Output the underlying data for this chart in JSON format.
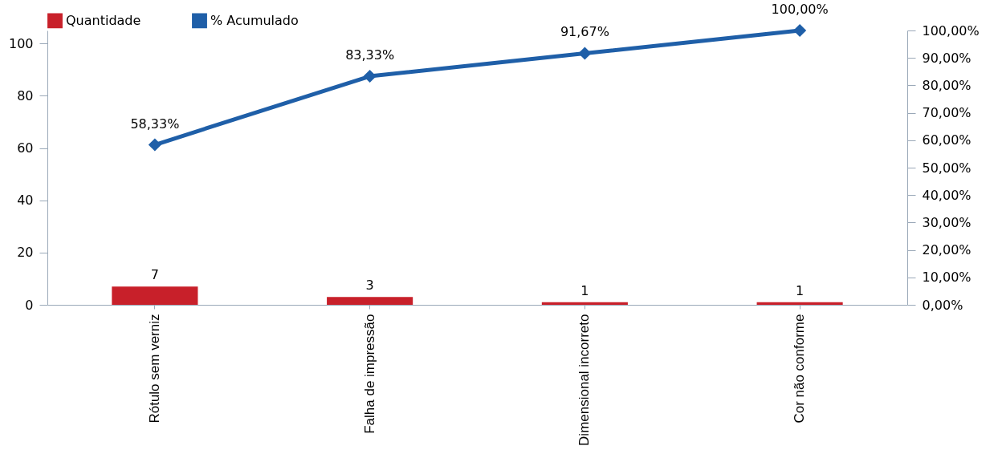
{
  "chart_data": {
    "type": "bar",
    "categories": [
      "Rótulo sem verniz",
      "Falha de impressão",
      "Dimensional incorreto",
      "Cor não conforme"
    ],
    "series": [
      {
        "name": "Quantidade",
        "type": "bar",
        "color": "#c8202a",
        "values": [
          7,
          3,
          1,
          1
        ],
        "value_labels": [
          "7",
          "3",
          "1",
          "1"
        ]
      },
      {
        "name": "% Acumulado",
        "type": "line",
        "axis": "y2",
        "color": "#1f5fa8",
        "values": [
          58.33,
          83.33,
          91.67,
          100
        ],
        "value_labels": [
          "58,33%",
          "83,33%",
          "91,67%",
          "100,00%"
        ]
      }
    ],
    "ylim": [
      0,
      105
    ],
    "yticks": [
      0,
      20,
      40,
      60,
      80,
      100
    ],
    "y2lim": [
      0,
      100
    ],
    "y2ticks": [
      {
        "value": 0,
        "label": "0,00%"
      },
      {
        "value": 10,
        "label": "10,00%"
      },
      {
        "value": 20,
        "label": "20,00%"
      },
      {
        "value": 30,
        "label": "30,00%"
      },
      {
        "value": 40,
        "label": "40,00%"
      },
      {
        "value": 50,
        "label": "50,00%"
      },
      {
        "value": 60,
        "label": "60,00%"
      },
      {
        "value": 70,
        "label": "70,00%"
      },
      {
        "value": 80,
        "label": "80,00%"
      },
      {
        "value": 90,
        "label": "90,00%"
      },
      {
        "value": 100,
        "label": "100,00%"
      }
    ],
    "legend": "top",
    "grid": false,
    "marker": "diamond",
    "line_style": "solid"
  }
}
